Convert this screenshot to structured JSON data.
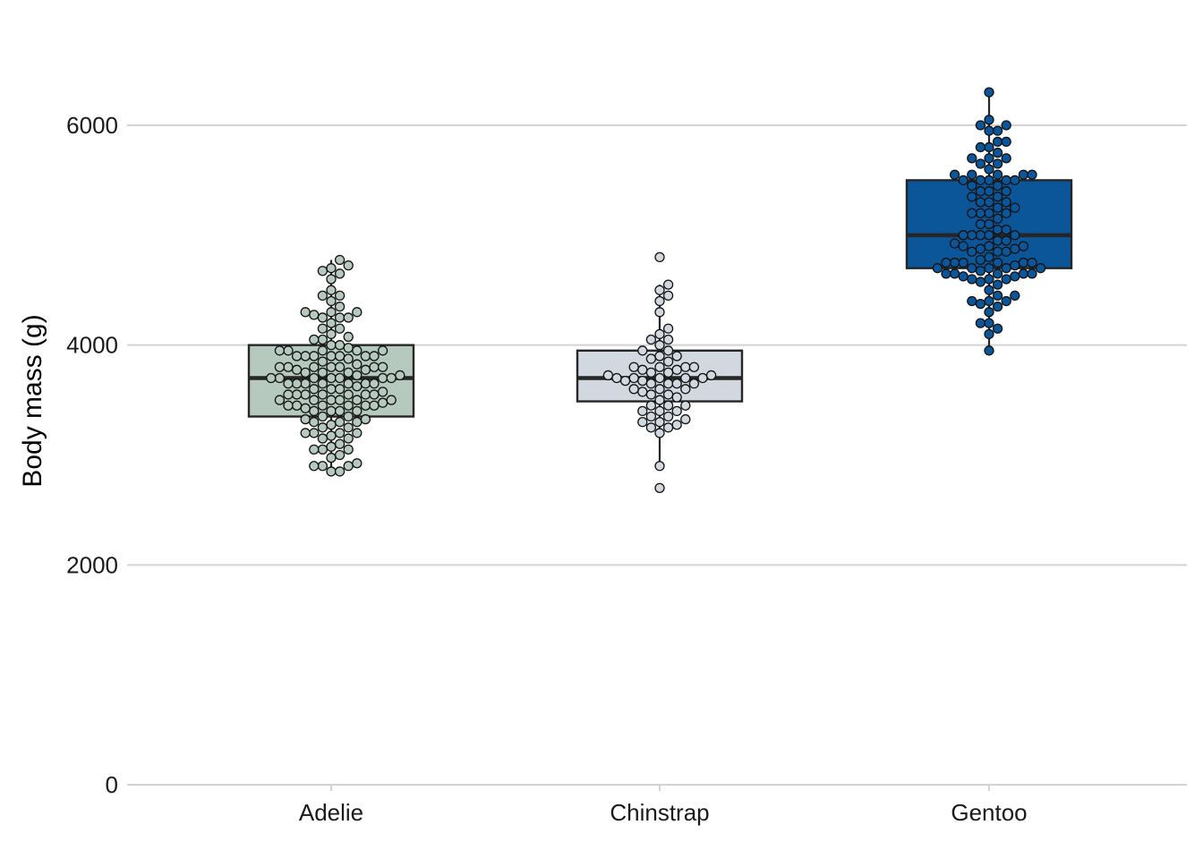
{
  "chart_data": {
    "type": "box",
    "title": "",
    "xlabel": "",
    "ylabel": "Body mass (g)",
    "ylim": [
      0,
      6800
    ],
    "y_ticks": [
      0,
      2000,
      4000,
      6000
    ],
    "y_tick_labels": [
      "0",
      "2000",
      "4000",
      "6000"
    ],
    "grid": "horizontal",
    "legend": "none",
    "categories": [
      "Adelie",
      "Chinstrap",
      "Gentoo"
    ],
    "series": [
      {
        "category": "Adelie",
        "fill": "#b5c9bf",
        "dot_color": "#b5c9bf",
        "box": {
          "whisker_low": 2850,
          "q1": 3350,
          "median": 3700,
          "q3": 4000,
          "whisker_high": 4775
        },
        "outliers": [],
        "points": [
          2850,
          2850,
          2900,
          2900,
          2900,
          2925,
          2975,
          3000,
          3050,
          3050,
          3050,
          3075,
          3100,
          3150,
          3150,
          3175,
          3200,
          3200,
          3200,
          3200,
          3250,
          3250,
          3275,
          3300,
          3300,
          3300,
          3325,
          3325,
          3350,
          3350,
          3400,
          3400,
          3400,
          3400,
          3425,
          3450,
          3450,
          3450,
          3450,
          3450,
          3450,
          3475,
          3500,
          3500,
          3500,
          3500,
          3500,
          3500,
          3550,
          3550,
          3550,
          3550,
          3550,
          3550,
          3550,
          3575,
          3600,
          3600,
          3600,
          3625,
          3650,
          3650,
          3650,
          3650,
          3650,
          3650,
          3650,
          3700,
          3700,
          3700,
          3700,
          3700,
          3700,
          3700,
          3725,
          3725,
          3750,
          3750,
          3750,
          3775,
          3775,
          3800,
          3800,
          3800,
          3800,
          3800,
          3800,
          3800,
          3825,
          3850,
          3875,
          3900,
          3900,
          3900,
          3900,
          3900,
          3900,
          3900,
          3950,
          3950,
          3950,
          3950,
          3950,
          3975,
          4000,
          4000,
          4050,
          4050,
          4075,
          4100,
          4150,
          4150,
          4200,
          4250,
          4250,
          4250,
          4275,
          4300,
          4300,
          4300,
          4350,
          4400,
          4450,
          4450,
          4500,
          4600,
          4650,
          4675,
          4700,
          4725,
          4775
        ]
      },
      {
        "category": "Chinstrap",
        "fill": "#d2d8e0",
        "dot_color": "#d2d8e0",
        "box": {
          "whisker_low": 2900,
          "q1": 3488,
          "median": 3700,
          "q3": 3950,
          "whisker_high": 4550
        },
        "outliers": [
          2700,
          4800
        ],
        "points": [
          2700,
          2900,
          3200,
          3250,
          3250,
          3275,
          3300,
          3300,
          3325,
          3350,
          3350,
          3400,
          3400,
          3400,
          3450,
          3450,
          3450,
          3500,
          3525,
          3550,
          3550,
          3575,
          3600,
          3600,
          3600,
          3650,
          3650,
          3650,
          3650,
          3675,
          3675,
          3700,
          3700,
          3700,
          3700,
          3700,
          3725,
          3725,
          3750,
          3750,
          3775,
          3775,
          3800,
          3800,
          3800,
          3800,
          3850,
          3875,
          3900,
          3900,
          3950,
          3950,
          4000,
          4050,
          4050,
          4100,
          4150,
          4300,
          4400,
          4450,
          4500,
          4550,
          4800
        ]
      },
      {
        "category": "Gentoo",
        "fill": "#0b5699",
        "dot_color": "#0b5699",
        "box": {
          "whisker_low": 3950,
          "q1": 4700,
          "median": 5000,
          "q3": 5500,
          "whisker_high": 6300
        },
        "outliers": [],
        "points": [
          3950,
          4100,
          4150,
          4200,
          4200,
          4300,
          4350,
          4375,
          4400,
          4400,
          4400,
          4450,
          4450,
          4500,
          4550,
          4575,
          4600,
          4600,
          4600,
          4625,
          4625,
          4650,
          4650,
          4650,
          4650,
          4650,
          4675,
          4700,
          4700,
          4700,
          4700,
          4700,
          4725,
          4750,
          4750,
          4750,
          4750,
          4750,
          4750,
          4775,
          4800,
          4850,
          4850,
          4850,
          4875,
          4875,
          4900,
          4900,
          4900,
          4925,
          4950,
          4950,
          5000,
          5000,
          5000,
          5000,
          5000,
          5050,
          5050,
          5100,
          5100,
          5150,
          5200,
          5200,
          5200,
          5200,
          5250,
          5250,
          5300,
          5300,
          5300,
          5350,
          5350,
          5400,
          5400,
          5400,
          5450,
          5450,
          5500,
          5500,
          5500,
          5500,
          5500,
          5550,
          5550,
          5550,
          5550,
          5550,
          5600,
          5650,
          5650,
          5700,
          5700,
          5700,
          5750,
          5800,
          5800,
          5850,
          5850,
          5950,
          5950,
          6000,
          6000,
          6050,
          6300
        ]
      }
    ]
  }
}
